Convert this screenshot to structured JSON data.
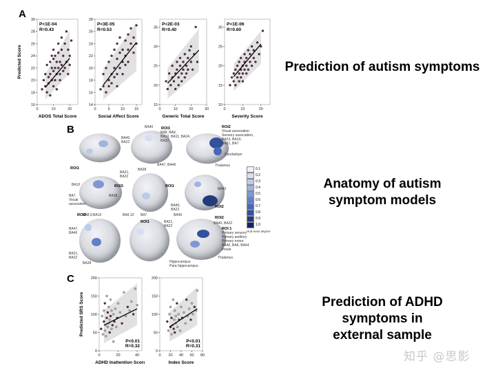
{
  "panels": {
    "A": "A",
    "B": "B",
    "C": "C"
  },
  "captions": {
    "A": "Prediction of autism symptoms",
    "B_line1": "Anatomy of autism",
    "B_line2": "symptom models",
    "C_line1": "Prediction of ADHD",
    "C_line2": "symptoms in",
    "C_line3": "external sample"
  },
  "watermark": "知乎 @思影",
  "chart_data": [
    {
      "type": "scatter",
      "panel": "A",
      "title": "",
      "xlabel": "ADOS Total Score",
      "ylabel": "Predicted Score",
      "xlim": [
        0,
        25
      ],
      "ylim": [
        16,
        30
      ],
      "xticks": [
        0,
        10,
        20
      ],
      "yticks": [
        16,
        18,
        20,
        22,
        24,
        26,
        28,
        30
      ],
      "annotation": [
        "P<1E-04",
        "R=0.43"
      ],
      "regression": [
        [
          5,
          18.8
        ],
        [
          20,
          23.6
        ]
      ],
      "band": [
        [
          5,
          16.8
        ],
        [
          20,
          21.2
        ],
        [
          20,
          28.2
        ],
        [
          5,
          21.0
        ]
      ],
      "x": [
        3,
        4,
        5,
        5,
        6,
        6,
        7,
        7,
        8,
        8,
        8,
        9,
        9,
        9,
        10,
        10,
        10,
        10,
        11,
        11,
        11,
        12,
        12,
        12,
        13,
        13,
        13,
        14,
        14,
        14,
        15,
        15,
        15,
        16,
        16,
        17,
        17,
        18,
        18,
        19,
        19,
        20,
        20,
        21
      ],
      "y": [
        18.5,
        20,
        19,
        21,
        18,
        22.5,
        20.5,
        19.5,
        21,
        23,
        17.5,
        20,
        22,
        24,
        19,
        21.5,
        23.5,
        25,
        20,
        22,
        24,
        21,
        23,
        18.5,
        22,
        24.5,
        26,
        21,
        23,
        20,
        22.5,
        25,
        27,
        21.5,
        24,
        22,
        26,
        23,
        28,
        21,
        25,
        24,
        22.5,
        26.5
      ]
    },
    {
      "type": "scatter",
      "panel": "A",
      "title": "",
      "xlabel": "Social Affect Score",
      "ylabel": "",
      "xlim": [
        0,
        17
      ],
      "ylim": [
        14,
        28
      ],
      "xticks": [
        0,
        5,
        10,
        15
      ],
      "yticks": [
        14,
        16,
        18,
        20,
        22,
        24,
        26,
        28
      ],
      "annotation": [
        "P<3E-05",
        "R=0.53"
      ],
      "regression": [
        [
          3,
          17.2
        ],
        [
          15,
          24.2
        ]
      ],
      "band": [
        [
          3,
          14.8
        ],
        [
          15,
          19.5
        ],
        [
          15,
          27.5
        ],
        [
          3,
          19.8
        ]
      ],
      "x": [
        2,
        3,
        3,
        4,
        4,
        5,
        5,
        5,
        6,
        6,
        6,
        7,
        7,
        7,
        8,
        8,
        8,
        8,
        9,
        9,
        9,
        10,
        10,
        10,
        11,
        11,
        11,
        12,
        12,
        12,
        13,
        13,
        14,
        14,
        15,
        15
      ],
      "y": [
        16.5,
        17,
        19,
        16,
        20,
        18,
        21,
        17,
        19,
        22,
        17.5,
        20,
        18.5,
        23,
        19,
        21.5,
        24,
        17,
        20,
        22.5,
        25,
        21,
        23,
        19,
        22,
        24.5,
        20.5,
        23,
        25.5,
        21,
        24,
        26.5,
        22.5,
        25,
        24,
        27
      ]
    },
    {
      "type": "scatter",
      "panel": "A",
      "title": "",
      "xlabel": "Generic Total Score",
      "ylabel": "",
      "xlim": [
        0,
        30
      ],
      "ylim": [
        15,
        37
      ],
      "xticks": [
        0,
        10,
        20,
        30
      ],
      "yticks": [
        15,
        20,
        25,
        30,
        35
      ],
      "annotation": [
        "P<2E-03",
        "R=0.40"
      ],
      "regression": [
        [
          5,
          20.5
        ],
        [
          25,
          29.0
        ]
      ],
      "band": [
        [
          5,
          16.5
        ],
        [
          25,
          23.5
        ],
        [
          25,
          34.5
        ],
        [
          5,
          24.5
        ]
      ],
      "x": [
        4,
        5,
        6,
        7,
        8,
        8,
        9,
        10,
        10,
        11,
        11,
        12,
        12,
        13,
        13,
        14,
        14,
        15,
        15,
        16,
        16,
        17,
        17,
        18,
        18,
        19,
        20,
        20,
        21,
        22,
        23,
        24
      ],
      "y": [
        21,
        19,
        23,
        20,
        22,
        25,
        21,
        23,
        19,
        24,
        26,
        22,
        20,
        25,
        27,
        23,
        21,
        26,
        24,
        22,
        28,
        25,
        23,
        27,
        24,
        29,
        26,
        30,
        24,
        28,
        35,
        26
      ]
    },
    {
      "type": "scatter",
      "panel": "A",
      "title": "",
      "xlabel": "Severity Score",
      "ylabel": "",
      "xlim": [
        0,
        25
      ],
      "ylim": [
        10,
        32
      ],
      "xticks": [
        0,
        10,
        20
      ],
      "yticks": [
        10,
        15,
        20,
        25,
        30
      ],
      "annotation": [
        "P<1E-06",
        "R=0.60"
      ],
      "regression": [
        [
          5,
          17.2
        ],
        [
          20,
          25.6
        ]
      ],
      "band": [
        [
          5,
          13.5
        ],
        [
          20,
          20.5
        ],
        [
          20,
          29.0
        ],
        [
          5,
          20.5
        ]
      ],
      "x": [
        3,
        4,
        5,
        5,
        6,
        6,
        7,
        7,
        8,
        8,
        8,
        9,
        9,
        9,
        10,
        10,
        10,
        11,
        11,
        11,
        12,
        12,
        12,
        13,
        13,
        14,
        14,
        15,
        15,
        16,
        16,
        17,
        18,
        19,
        20,
        21
      ],
      "y": [
        15,
        17,
        16,
        18,
        15,
        19,
        17,
        20,
        16,
        18,
        21,
        17,
        19,
        22,
        18,
        20,
        16,
        19,
        21,
        23,
        18,
        20,
        22,
        19,
        24,
        21,
        23,
        20,
        25,
        22,
        24,
        21,
        26,
        23,
        25,
        29
      ]
    },
    {
      "type": "scatter",
      "panel": "C",
      "title": "",
      "xlabel": "ADHD Inattention Score",
      "ylabel": "Predicted SRS Score",
      "xlim": [
        0,
        45
      ],
      "ylim": [
        0,
        200
      ],
      "xticks": [
        0,
        20,
        40
      ],
      "yticks": [
        0,
        50,
        100,
        150,
        200
      ],
      "annotation": [
        "P<0.01",
        "R=0.32"
      ],
      "regression": [
        [
          5,
          70
        ],
        [
          40,
          115
        ]
      ],
      "band": [
        [
          5,
          20
        ],
        [
          40,
          70
        ],
        [
          40,
          185
        ],
        [
          5,
          110
        ]
      ],
      "x": [
        2,
        3,
        4,
        5,
        5,
        6,
        6,
        7,
        7,
        8,
        8,
        9,
        9,
        10,
        10,
        11,
        11,
        12,
        12,
        13,
        13,
        14,
        15,
        15,
        16,
        17,
        18,
        19,
        20,
        22,
        24,
        26,
        28,
        30,
        32,
        34,
        36,
        38,
        40
      ],
      "y": [
        60,
        95,
        45,
        80,
        110,
        55,
        130,
        70,
        40,
        90,
        150,
        65,
        105,
        75,
        120,
        50,
        85,
        140,
        95,
        60,
        110,
        70,
        25,
        100,
        80,
        115,
        65,
        90,
        130,
        105,
        75,
        160,
        95,
        120,
        110,
        135,
        100,
        170,
        125
      ]
    },
    {
      "type": "scatter",
      "panel": "C",
      "title": "",
      "xlabel": "Index Score",
      "ylabel": "",
      "xlim": [
        0,
        80
      ],
      "ylim": [
        0,
        200
      ],
      "xticks": [
        0,
        20,
        40,
        60,
        80
      ],
      "yticks": [
        0,
        50,
        100,
        150,
        200
      ],
      "annotation": [
        "P<0.01",
        "R=0.31"
      ],
      "regression": [
        [
          18,
          65
        ],
        [
          70,
          115
        ]
      ],
      "band": [
        [
          18,
          25
        ],
        [
          70,
          70
        ],
        [
          70,
          175
        ],
        [
          18,
          105
        ]
      ],
      "x": [
        14,
        16,
        18,
        20,
        20,
        22,
        22,
        24,
        25,
        26,
        27,
        28,
        28,
        30,
        30,
        32,
        33,
        35,
        36,
        38,
        40,
        42,
        45,
        48,
        50,
        52,
        55,
        58,
        60,
        62,
        65,
        68,
        70
      ],
      "y": [
        80,
        55,
        100,
        65,
        120,
        45,
        90,
        70,
        140,
        60,
        85,
        110,
        50,
        95,
        75,
        130,
        65,
        100,
        85,
        55,
        120,
        90,
        105,
        75,
        140,
        95,
        115,
        85,
        130,
        100,
        120,
        110,
        165
      ]
    }
  ],
  "anatomy": {
    "roi_labels": [
      "ROI1",
      "ROI2",
      "ROI3",
      "ROI4",
      "ROI1",
      "ROI2",
      "ROI3",
      "ROI1",
      "ROI2",
      "ROI 1",
      "ROI3"
    ],
    "region_labels": [
      "BA40",
      "BA40,\nBA22",
      "ROI3",
      "BA8, BA9,\nBA10, BA11, BA24,\nBA32",
      "ROI2",
      "Visual association\nSensory association,\nBA23, BA19,\nBA31, BA7",
      "Cerebellum",
      "Thalamus",
      "BA47, BA46",
      "BA21,\nBA22",
      "BA38",
      "BA10",
      "BA7,\nVisual\nassociation",
      "BA38",
      "BA40",
      "BA40,\nBA22",
      "BA9,10",
      "BA47,\nBA46",
      "BA21,\nBA22",
      "BA38",
      "BA7",
      "BA21,\nBA22",
      "BA40",
      "BA40, BA22",
      "Primary sensory\nPrimary auditory\nPrimary motor\nBA40, BA6, BA44\nInsula",
      "Hippocampus\nPara hippocampus",
      "Thalamus",
      "BA8,9,BA10"
    ],
    "legend_title": "Hub-ness degree",
    "legend_ticks": [
      "0.1",
      "0.2",
      "0.3",
      "0.4",
      "0.5",
      "0.6",
      "0.7",
      "0.8",
      "0.9",
      "1.0"
    ],
    "legend_colors": [
      "#eef1fa",
      "#d6def2",
      "#bccbeb",
      "#9fb3e0",
      "#7f97d2",
      "#6180c6",
      "#4768b5",
      "#33519c",
      "#223b7c",
      "#142660"
    ]
  }
}
